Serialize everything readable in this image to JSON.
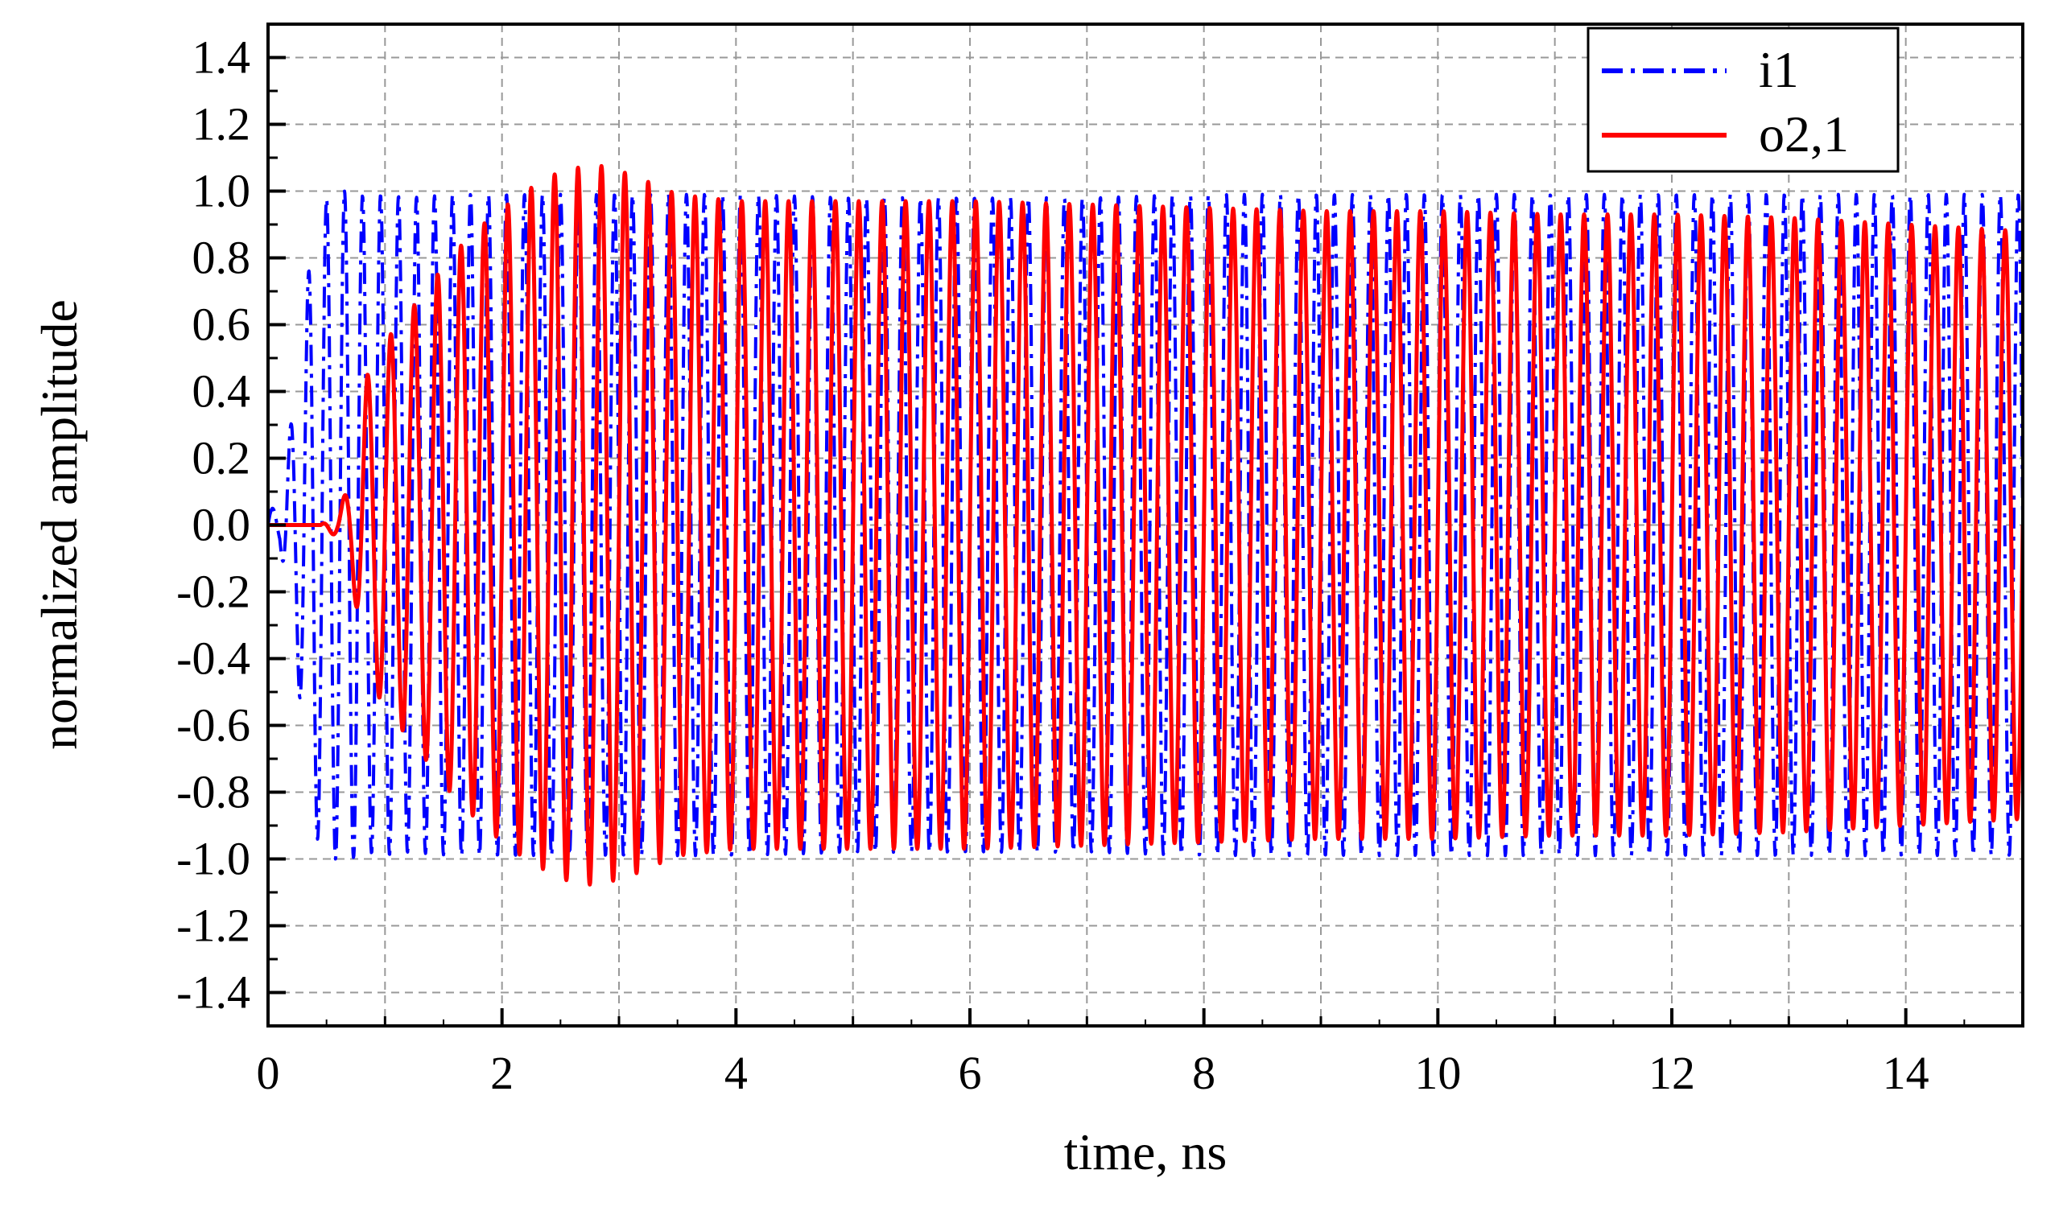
{
  "chart_data": {
    "type": "line",
    "title": "",
    "xlabel": "time, ns",
    "ylabel": "normalized amplitude",
    "xlim": [
      0,
      15
    ],
    "ylim": [
      -1.5,
      1.5
    ],
    "x_ticks": [
      0,
      2,
      4,
      6,
      8,
      10,
      12,
      14
    ],
    "x_tick_labels": [
      "0",
      "2",
      "4",
      "6",
      "8",
      "10",
      "12",
      "14"
    ],
    "y_ticks": [
      1.4,
      1.2,
      1.0,
      0.8,
      0.6,
      0.4,
      0.2,
      0.0,
      -0.2,
      -0.4,
      -0.6,
      -0.8,
      -1.0,
      -1.2,
      -1.4
    ],
    "y_tick_labels": [
      "1.4",
      "1.2",
      "1.0",
      "0.8",
      "0.6",
      "0.4",
      "0.2",
      "0.0",
      "-0.2",
      "-0.4",
      "-0.6",
      "-0.8",
      "-1.0",
      "-1.2",
      "-1.4"
    ],
    "grid": true,
    "legend_position": "top-right",
    "series": [
      {
        "name": "i1",
        "color": "#0000ff",
        "line_style": "dash-dot",
        "x": [
          0,
          0.1,
          0.25,
          0.4,
          0.55,
          0.7,
          0.85,
          1.0,
          1.2,
          1.6,
          2,
          3,
          4,
          5,
          6,
          7,
          8,
          9,
          10,
          11,
          12,
          13,
          14,
          15
        ],
        "envelope": [
          0.05,
          0.05,
          0.45,
          0.93,
          1.0,
          1.0,
          0.98,
          0.99,
          0.98,
          0.99,
          0.99,
          0.99,
          0.99,
          0.98,
          0.98,
          0.98,
          0.99,
          0.99,
          0.99,
          0.99,
          0.99,
          0.99,
          0.99,
          0.99
        ],
        "cycles_per_ns": 6.5
      },
      {
        "name": "o2,1",
        "color": "#ff0000",
        "line_style": "solid",
        "x": [
          0,
          0.45,
          0.6,
          0.7,
          0.85,
          1.0,
          1.3,
          1.6,
          1.9,
          2.2,
          2.5,
          2.8,
          3.1,
          3.5,
          4,
          5,
          6,
          7,
          8,
          9,
          10,
          11,
          12,
          13,
          14,
          15
        ],
        "envelope": [
          0.0,
          0.0,
          0.04,
          0.13,
          0.45,
          0.55,
          0.68,
          0.82,
          0.92,
          1.0,
          1.06,
          1.08,
          1.05,
          0.99,
          0.97,
          0.97,
          0.97,
          0.96,
          0.95,
          0.94,
          0.94,
          0.93,
          0.93,
          0.92,
          0.9,
          0.88
        ],
        "cycles_per_ns": 5.0
      }
    ]
  }
}
